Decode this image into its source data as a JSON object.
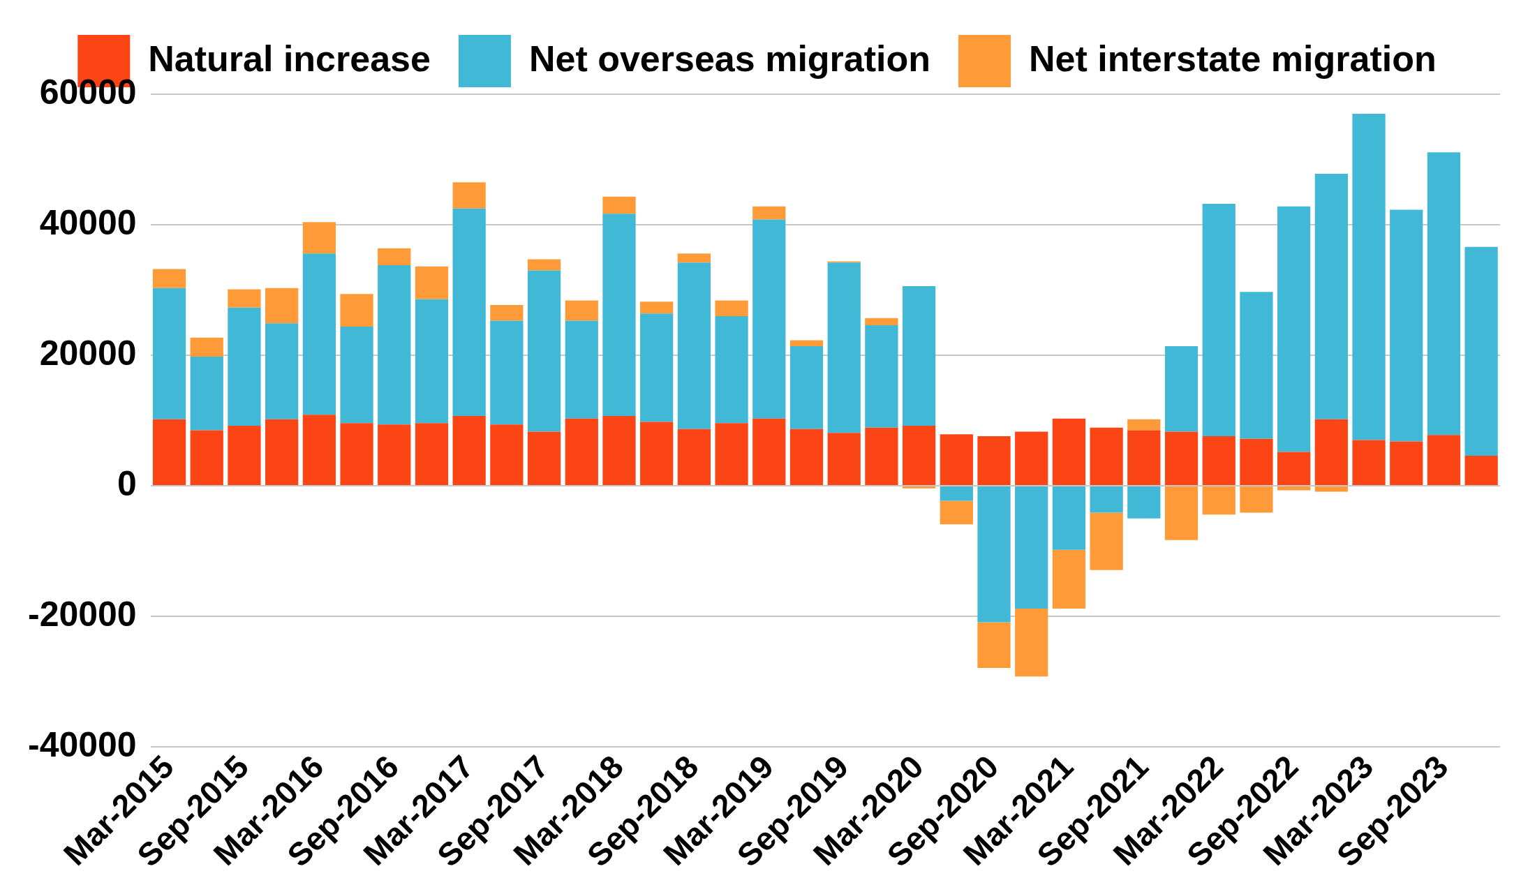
{
  "chart_data": {
    "type": "bar",
    "stacked": true,
    "legend": "top",
    "grid": "y",
    "categories": [
      "Mar-2015",
      null,
      "Sep-2015",
      null,
      "Mar-2016",
      null,
      "Sep-2016",
      null,
      "Mar-2017",
      null,
      "Sep-2017",
      null,
      "Mar-2018",
      null,
      "Sep-2018",
      null,
      "Mar-2019",
      null,
      "Sep-2019",
      null,
      "Mar-2020",
      null,
      "Sep-2020",
      null,
      "Mar-2021",
      null,
      "Sep-2021",
      null,
      "Mar-2022",
      null,
      "Sep-2022",
      null,
      "Mar-2023",
      null,
      "Sep-2023",
      null
    ],
    "ylim": [
      -40000,
      60000
    ],
    "yticks": [
      -40000,
      -20000,
      0,
      20000,
      40000,
      60000
    ],
    "series": [
      {
        "name": "Natural increase",
        "color": "#fc4514",
        "values": [
          10200,
          8500,
          9200,
          10200,
          10900,
          9600,
          9400,
          9600,
          10700,
          9400,
          8300,
          10300,
          10700,
          9800,
          8700,
          9600,
          10300,
          8700,
          8100,
          8900,
          9200,
          7900,
          7600,
          8300,
          10300,
          8900,
          8500,
          8300,
          7600,
          7200,
          5200,
          10200,
          7000,
          6800,
          7800,
          4600
        ]
      },
      {
        "name": "Net overseas migration",
        "color": "#41b8d5",
        "values": [
          20100,
          11300,
          18100,
          14700,
          24700,
          14800,
          24400,
          19000,
          31800,
          15900,
          24700,
          15000,
          31000,
          16600,
          25500,
          16400,
          30500,
          12700,
          26100,
          15700,
          21400,
          -2300,
          -20900,
          -18800,
          -9800,
          -4100,
          -5000,
          13100,
          35600,
          22500,
          37600,
          37600,
          50000,
          35500,
          43300,
          32000
        ]
      },
      {
        "name": "Net interstate migration",
        "color": "#fe9b38",
        "values": [
          2900,
          2900,
          2800,
          5400,
          4800,
          5000,
          2600,
          5000,
          4000,
          2400,
          1700,
          3100,
          2600,
          1800,
          1400,
          2400,
          2000,
          900,
          200,
          1100,
          -400,
          -3600,
          -7000,
          -10400,
          -9000,
          -8800,
          1700,
          -8300,
          -4400,
          -4100,
          -700,
          -900,
          null,
          null,
          null,
          null
        ]
      }
    ]
  }
}
